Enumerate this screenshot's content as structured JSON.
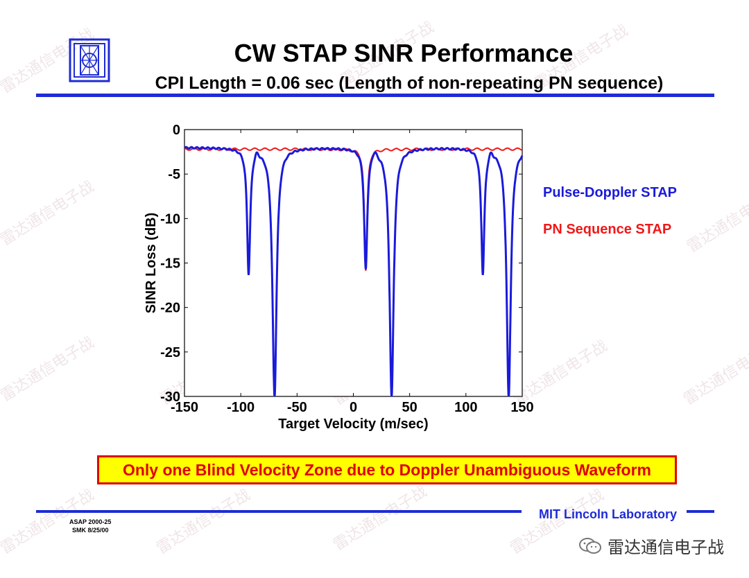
{
  "slide": {
    "title": "CW STAP SINR Performance",
    "subtitle": "CPI Length = 0.06 sec (Length of non-repeating PN sequence)",
    "callout": "Only one Blind Velocity Zone due to Doppler Unambiguous Waveform",
    "footer_lab": "MIT Lincoln Laboratory",
    "ref_line1": "ASAP 2000-25",
    "ref_line2": "SMK 8/25/00",
    "wechat_label": "雷达通信电子战",
    "watermark_text": "雷达通信电子战"
  },
  "logo": {
    "icon": "mit-ll-logo-icon"
  },
  "legend": [
    {
      "label": "Pulse-Doppler STAP",
      "color": "#1a1adb"
    },
    {
      "label": "PN Sequence STAP",
      "color": "#f01818"
    }
  ],
  "chart_data": {
    "type": "line",
    "title": "",
    "xlabel": "Target Velocity (m/sec)",
    "ylabel": "SINR Loss (dB)",
    "xlim": [
      -150,
      150
    ],
    "ylim": [
      -30,
      0
    ],
    "xticks": [
      -150,
      -100,
      -50,
      0,
      50,
      100,
      150
    ],
    "yticks": [
      0,
      -5,
      -10,
      -15,
      -20,
      -25,
      -30
    ],
    "xtick_labels": [
      "-150",
      "-100",
      "-50",
      "0",
      "50",
      "100",
      "150"
    ],
    "ytick_labels": [
      "0",
      "-5",
      "-10",
      "-15",
      "-20",
      "-25",
      "-30"
    ],
    "series": [
      {
        "name": "Pulse-Doppler STAP",
        "color": "#1a1adb",
        "baseline": -2.0,
        "notches": [
          {
            "center": -93,
            "depth": -16,
            "width": 3.0
          },
          {
            "center": -70,
            "depth": -30,
            "width": 4.0
          },
          {
            "center": 11,
            "depth": -15.5,
            "width": 3.0
          },
          {
            "center": 34,
            "depth": -30,
            "width": 4.0
          },
          {
            "center": 115,
            "depth": -16,
            "width": 3.0
          },
          {
            "center": 138,
            "depth": -30,
            "width": 4.0
          }
        ],
        "bumps": [
          {
            "center": -86,
            "height": 0.6
          },
          {
            "center": 19,
            "height": 0.6
          },
          {
            "center": 122,
            "height": 0.6
          }
        ]
      },
      {
        "name": "PN Sequence STAP",
        "color": "#f01818",
        "baseline": -2.2,
        "notches": [
          {
            "center": 11,
            "depth": -16,
            "width": 2.5
          }
        ],
        "bumps": []
      }
    ]
  }
}
